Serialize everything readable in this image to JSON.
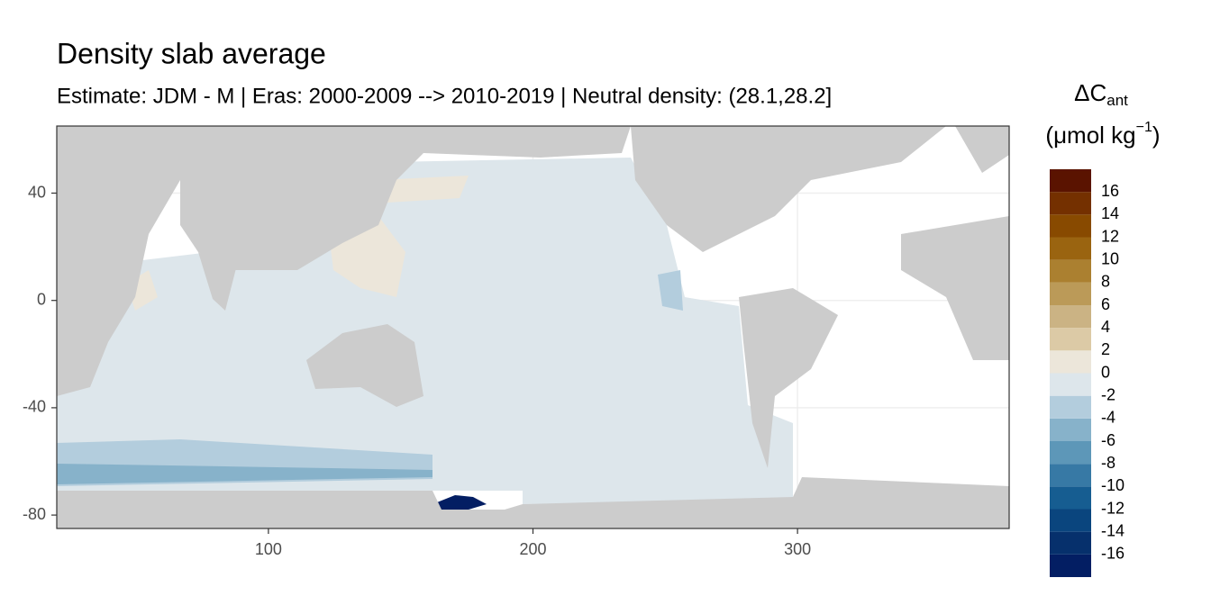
{
  "chart_data": {
    "type": "raster-map",
    "title": "Density slab average",
    "subtitle": "Estimate: JDM - M | Eras: 2000-2009 --> 2010-2019 | Neutral density: (28.1,28.2]",
    "xlim": [
      20,
      380
    ],
    "ylim": [
      -85,
      65
    ],
    "xticks": [
      100,
      200,
      300
    ],
    "yticks": [
      -80,
      -40,
      0,
      40
    ],
    "grid": true,
    "colorbar": {
      "title": "ΔC",
      "title_sub": "ant",
      "unit": "(μmol kg",
      "unit_sup": "−1",
      "unit_end": ")",
      "lim": [
        -18,
        18
      ],
      "ticks": [
        -16,
        -14,
        -12,
        -10,
        -8,
        -6,
        -4,
        -2,
        0,
        2,
        4,
        6,
        8,
        10,
        12,
        14,
        16
      ],
      "colors": [
        "#031e63",
        "#06306c",
        "#0a457e",
        "#165d91",
        "#3779a5",
        "#5d97b8",
        "#87b2ca",
        "#b3cddd",
        "#dde6eb",
        "#ece6da",
        "#dccaa6",
        "#cbb384",
        "#bb9a58",
        "#ab8030",
        "#9a6410",
        "#884a00",
        "#743000",
        "#5a1300"
      ]
    }
  }
}
